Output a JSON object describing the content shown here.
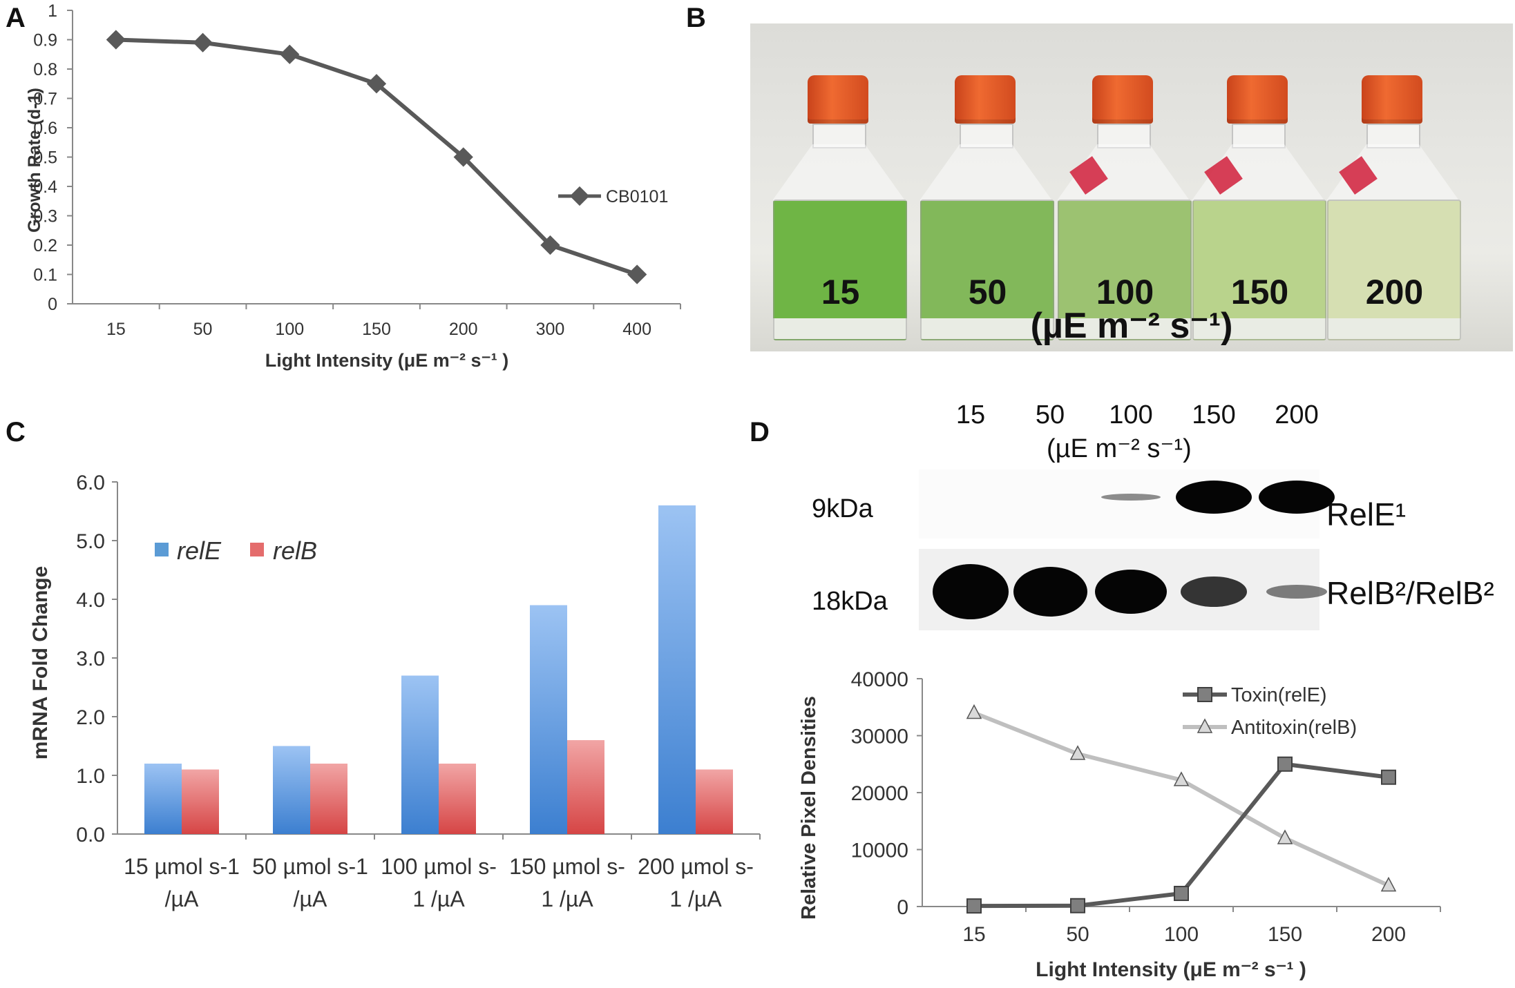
{
  "panels": {
    "a": "A",
    "b": "B",
    "c": "C",
    "d": "D"
  },
  "chart_data": [
    {
      "id": "A",
      "type": "line",
      "title": "",
      "xlabel": "Light Intensity (μE m⁻² s⁻¹ )",
      "ylabel": "Growth Rate (d-1)",
      "categories": [
        "15",
        "50",
        "100",
        "150",
        "200",
        "300",
        "400"
      ],
      "series": [
        {
          "name": "CB0101",
          "values": [
            0.9,
            0.89,
            0.85,
            0.75,
            0.5,
            0.2,
            0.1
          ],
          "color": "#595959"
        }
      ],
      "ylim": [
        0,
        1
      ],
      "yticks": [
        "0",
        "0.1",
        "0.2",
        "0.3",
        "0.4",
        "0.5",
        "0.6",
        "0.7",
        "0.8",
        "0.9",
        "1"
      ],
      "legend": "right"
    },
    {
      "id": "C",
      "type": "bar",
      "ylabel": "mRNA Fold Change",
      "categories": [
        [
          "15 µmol s-1",
          "/µA"
        ],
        [
          "50 µmol s-1",
          "/µA"
        ],
        [
          "100 µmol s-",
          "1 /µA"
        ],
        [
          "150 µmol s-",
          "1 /µA"
        ],
        [
          "200 µmol s-",
          "1 /µA"
        ]
      ],
      "series": [
        {
          "name": "relE",
          "values": [
            1.2,
            1.5,
            2.7,
            3.9,
            5.6
          ],
          "color": "#5b9bd5"
        },
        {
          "name": "relB",
          "values": [
            1.1,
            1.2,
            1.2,
            1.6,
            1.1
          ],
          "color": "#e46c6c"
        }
      ],
      "ylim": [
        0,
        6
      ],
      "yticks": [
        "0.0",
        "1.0",
        "2.0",
        "3.0",
        "4.0",
        "5.0",
        "6.0"
      ],
      "legend": "top-left"
    },
    {
      "id": "D",
      "type": "line",
      "xlabel": "Light Intensity (μE m⁻² s⁻¹ )",
      "ylabel": "Relative Pixel Densities",
      "categories": [
        "15",
        "50",
        "100",
        "150",
        "200"
      ],
      "series": [
        {
          "name": "Toxin(relE)",
          "values": [
            100,
            150,
            2300,
            25000,
            22700
          ],
          "color": "#595959",
          "marker": "square"
        },
        {
          "name": "Antitoxin(relB)",
          "values": [
            34000,
            26800,
            22200,
            12000,
            3700
          ],
          "color": "#bfbfbf",
          "marker": "triangle"
        }
      ],
      "ylim": [
        0,
        40000
      ],
      "yticks": [
        "0",
        "10000",
        "20000",
        "30000",
        "40000"
      ],
      "legend": "top-right"
    }
  ],
  "photo_b": {
    "flask_labels": [
      "15",
      "50",
      "100",
      "150",
      "200"
    ],
    "liquid_colors": [
      "#6fb545",
      "#82b85a",
      "#9cc271",
      "#b9d38c",
      "#d6dfb2"
    ],
    "units": "(µE m⁻² s⁻¹)"
  },
  "blot_d": {
    "lanes": [
      "15",
      "50",
      "100",
      "150",
      "200"
    ],
    "units": "(µE m⁻² s⁻¹)",
    "row1": {
      "size": "9kDa",
      "protein": "RelE¹",
      "intensity": [
        0,
        0,
        0.2,
        1,
        1
      ]
    },
    "row2": {
      "size": "18kDa",
      "protein": "RelB²/RelB²",
      "intensity": [
        1,
        0.9,
        0.8,
        0.55,
        0.25
      ]
    }
  }
}
